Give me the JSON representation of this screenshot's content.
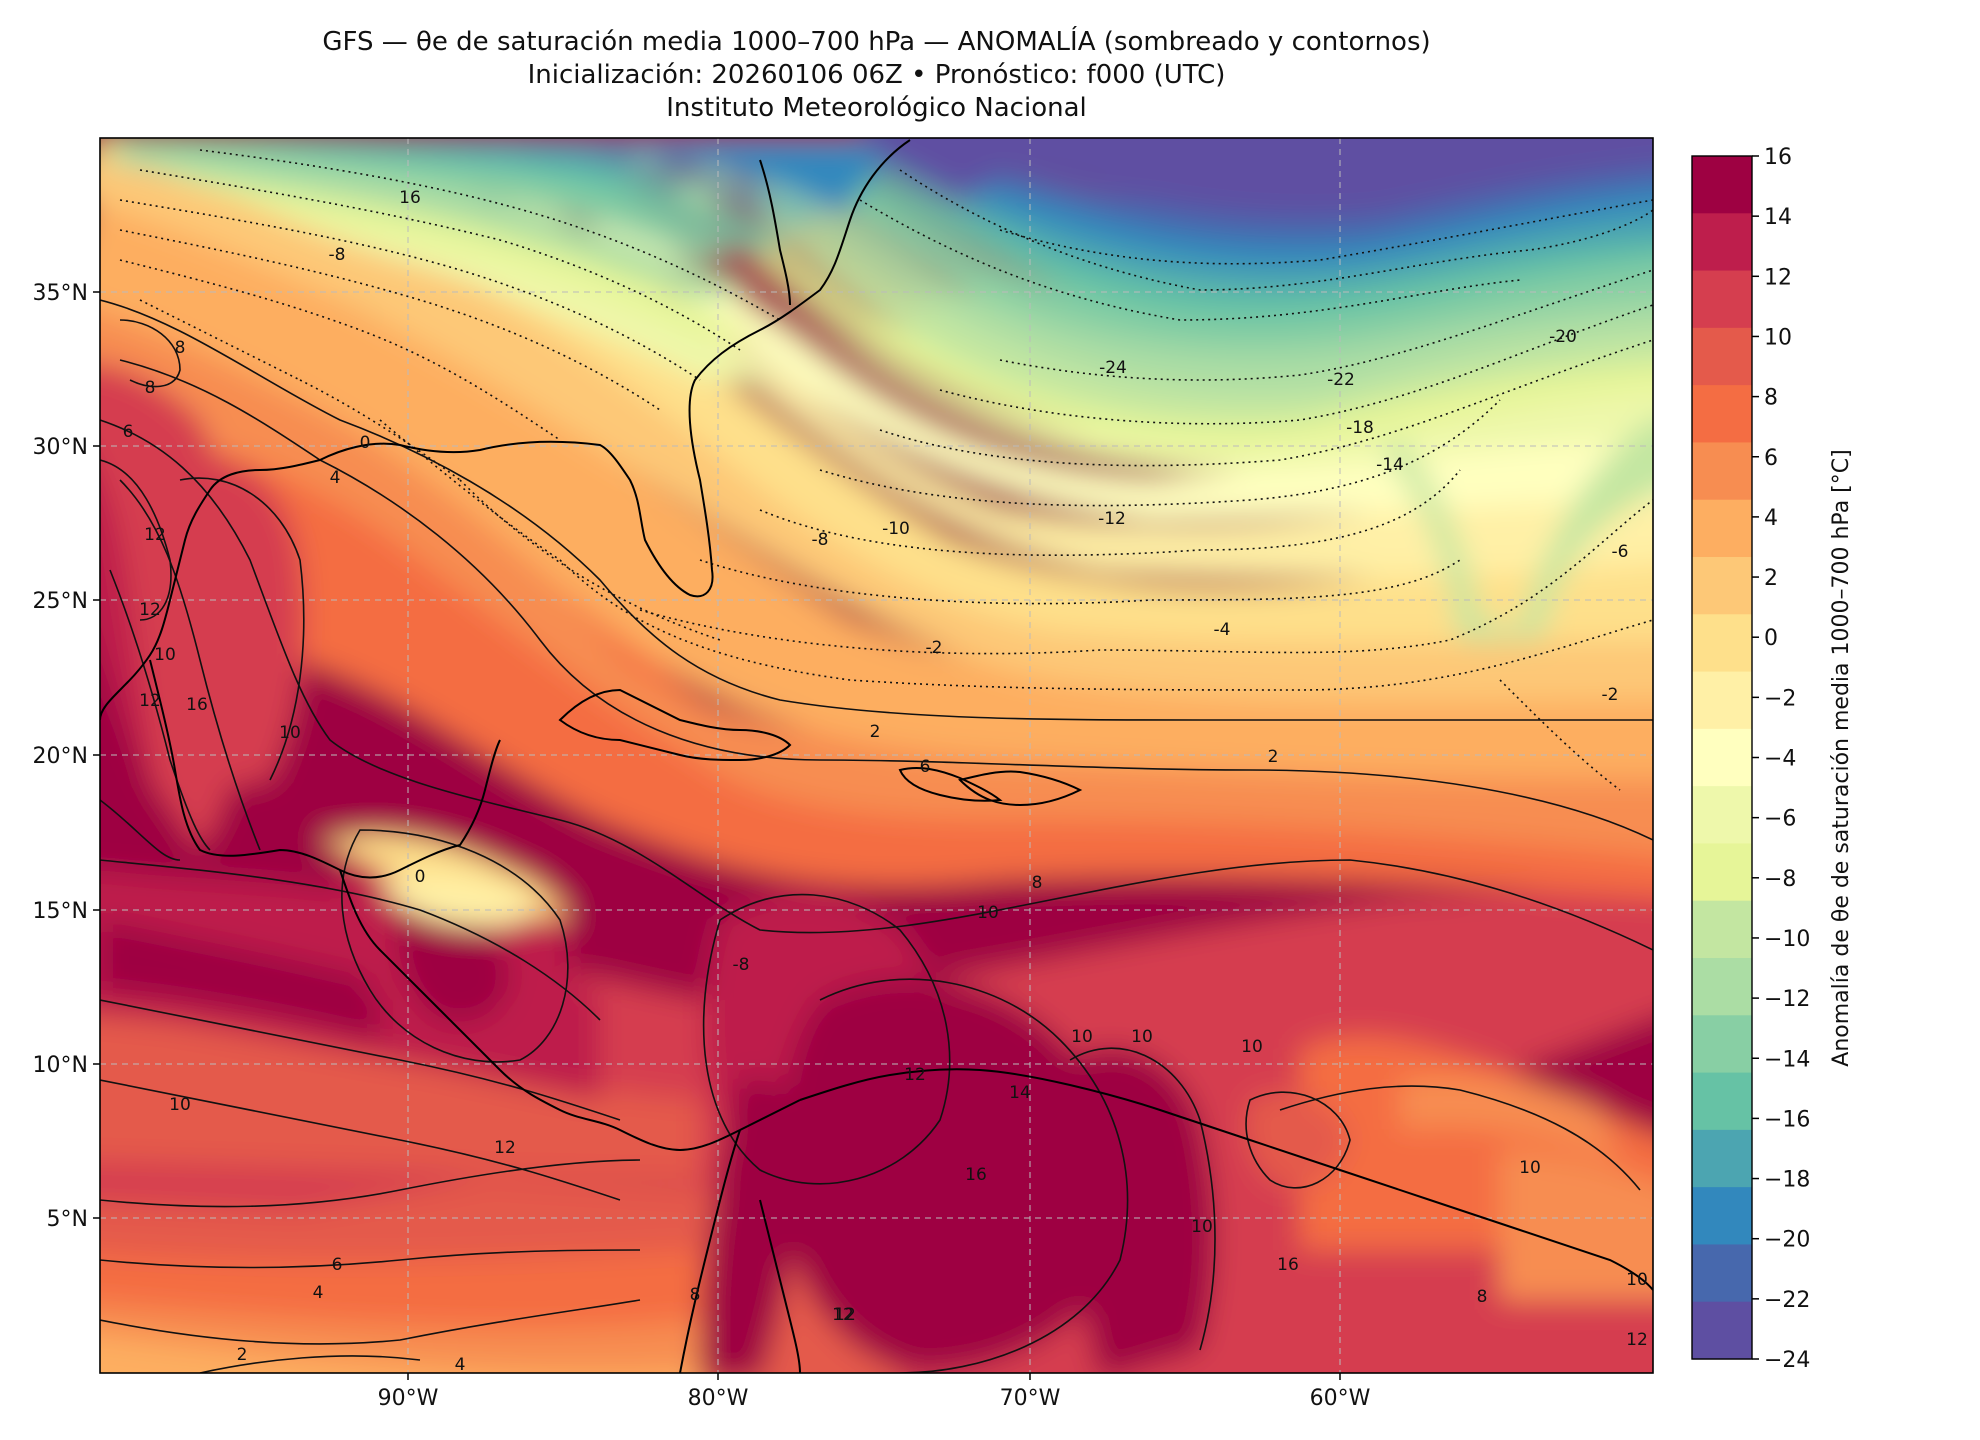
{
  "title": {
    "line1": "GFS — θe de saturación media 1000–700 hPa — ANOMALÍA (sombreado y contornos)",
    "line2": "Inicialización: 20260106 06Z   •   Pronóstico: f000 (UTC)",
    "line3": "Instituto Meteorológico Nacional"
  },
  "map": {
    "lon_range": [
      -100,
      -50
    ],
    "lat_range": [
      0,
      40
    ],
    "gridlines": true,
    "x_ticks": [
      "90°W",
      "80°W",
      "70°W",
      "60°W"
    ],
    "y_ticks": [
      "5°N",
      "10°N",
      "15°N",
      "20°N",
      "25°N",
      "30°N",
      "35°N"
    ],
    "contour_labels": [
      "16",
      "-8",
      "8",
      "8",
      "6",
      "0",
      "4",
      "12",
      "12",
      "10",
      "12",
      "16",
      "10",
      "-24",
      "-22",
      "-20",
      "-18",
      "-14",
      "-12",
      "-10",
      "-8",
      "-6",
      "-4",
      "-2",
      "-2",
      "2",
      "2",
      "6",
      "0",
      "8",
      "10",
      "-8",
      "10",
      "10",
      "10",
      "12",
      "10",
      "14",
      "16",
      "10",
      "12",
      "10",
      "6",
      "4",
      "2",
      "4",
      "8",
      "12",
      "16",
      "8",
      "10",
      "12",
      "12"
    ]
  },
  "colorbar": {
    "label": "Anomalía de θe de saturación media 1000–700 hPa [°C]",
    "ticks": [
      "16",
      "14",
      "12",
      "10",
      "8",
      "6",
      "4",
      "2",
      "0",
      "−2",
      "−4",
      "−6",
      "−8",
      "−10",
      "−12",
      "−14",
      "−16",
      "−18",
      "−20",
      "−22",
      "−24"
    ],
    "colors": [
      "#9e0142",
      "#be1e4c",
      "#d53e4f",
      "#e45a4b",
      "#f46d43",
      "#f78d51",
      "#fdae61",
      "#fdc877",
      "#fee08b",
      "#fff0a6",
      "#ffffbf",
      "#eef8ab",
      "#e6f598",
      "#c3e6a1",
      "#abdda4",
      "#88cfa4",
      "#66c2a5",
      "#4ca5b1",
      "#3288bd",
      "#4768ad",
      "#5e4fa2"
    ]
  }
}
